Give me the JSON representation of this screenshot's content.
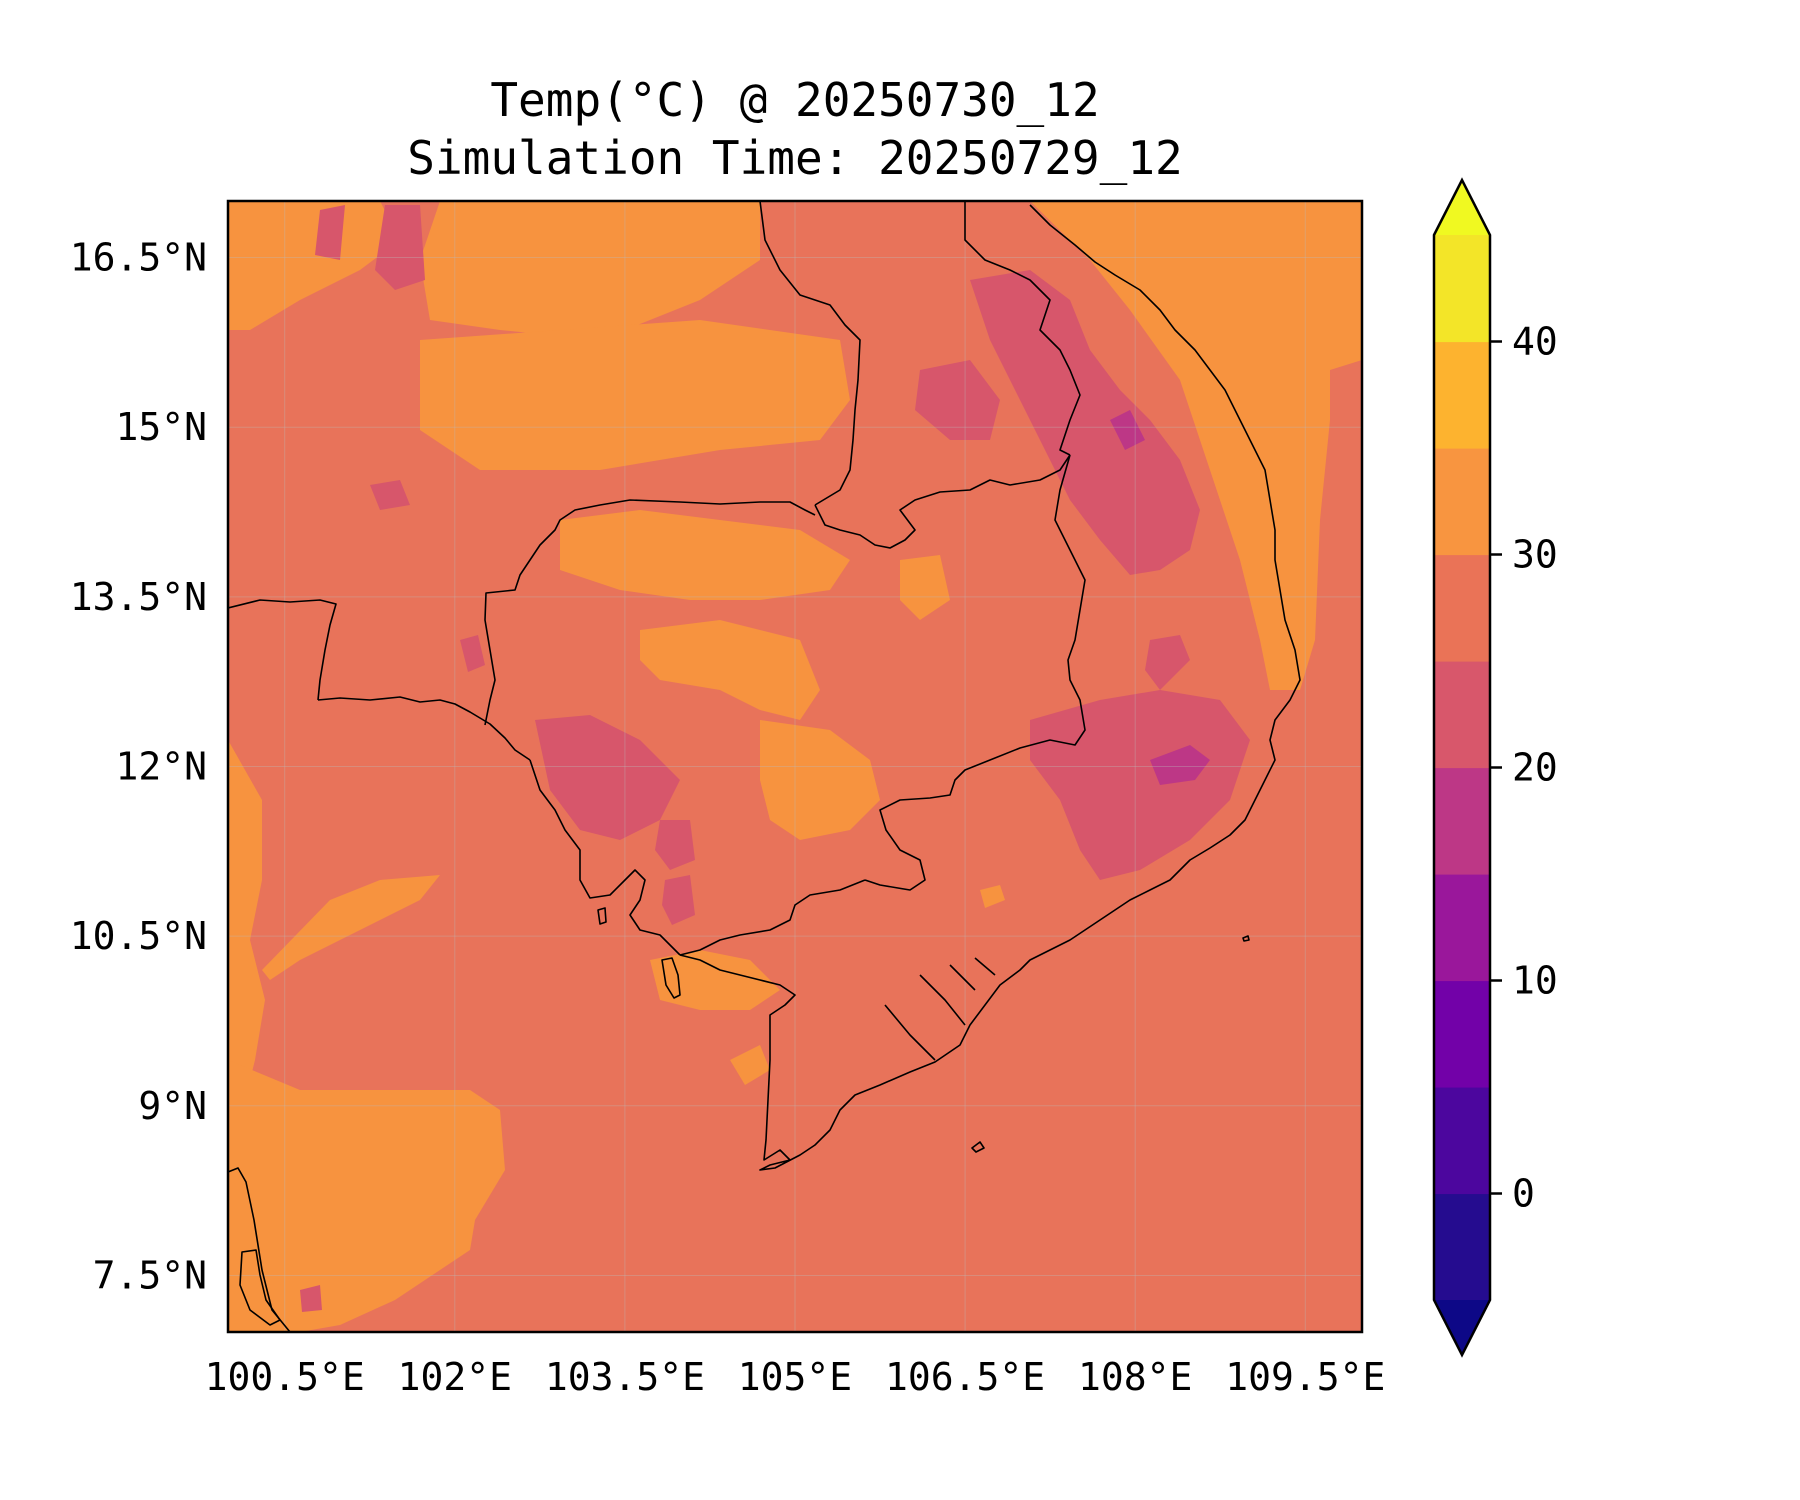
{
  "title": {
    "line1": "Temp(°C) @ 20250730_12",
    "line2": "Simulation Time: 20250729_12"
  },
  "map": {
    "variable": "Temp(°C)",
    "lon_range": [
      100.0,
      110.0
    ],
    "lat_range": [
      7.0,
      17.0
    ],
    "x_ticks": [
      {
        "value": 100.5,
        "label": "100.5°E"
      },
      {
        "value": 102.0,
        "label": "102°E"
      },
      {
        "value": 103.5,
        "label": "103.5°E"
      },
      {
        "value": 105.0,
        "label": "105°E"
      },
      {
        "value": 106.5,
        "label": "106.5°E"
      },
      {
        "value": 108.0,
        "label": "108°E"
      },
      {
        "value": 109.5,
        "label": "109.5°E"
      }
    ],
    "y_ticks": [
      {
        "value": 16.5,
        "label": "16.5°N"
      },
      {
        "value": 15.0,
        "label": "15°N"
      },
      {
        "value": 13.5,
        "label": "13.5°N"
      },
      {
        "value": 12.0,
        "label": "12°N"
      },
      {
        "value": 10.5,
        "label": "10.5°N"
      },
      {
        "value": 9.0,
        "label": "9°N"
      },
      {
        "value": 7.5,
        "label": "7.5°N"
      }
    ],
    "gridlines": true,
    "background_level_color": "#e8735a"
  },
  "colorbar": {
    "extend": "both",
    "range": [
      -5,
      45
    ],
    "ticks": [
      {
        "value": 0,
        "label": "0"
      },
      {
        "value": 10,
        "label": "10"
      },
      {
        "value": 20,
        "label": "20"
      },
      {
        "value": 30,
        "label": "30"
      },
      {
        "value": 40,
        "label": "40"
      }
    ],
    "levels": [
      {
        "from": -5,
        "to": 0,
        "color": "#250c8f"
      },
      {
        "from": 0,
        "to": 5,
        "color": "#4c069e"
      },
      {
        "from": 5,
        "to": 10,
        "color": "#7201a8"
      },
      {
        "from": 10,
        "to": 15,
        "color": "#9a179b"
      },
      {
        "from": 15,
        "to": 20,
        "color": "#bd3786"
      },
      {
        "from": 20,
        "to": 25,
        "color": "#d8576b"
      },
      {
        "from": 25,
        "to": 30,
        "color": "#ea7357"
      },
      {
        "from": 30,
        "to": 35,
        "color": "#f89540"
      },
      {
        "from": 35,
        "to": 40,
        "color": "#fdb32f"
      },
      {
        "from": 40,
        "to": 45,
        "color": "#f3e528"
      }
    ],
    "under_color": "#0d0887",
    "over_color": "#f0f921"
  }
}
